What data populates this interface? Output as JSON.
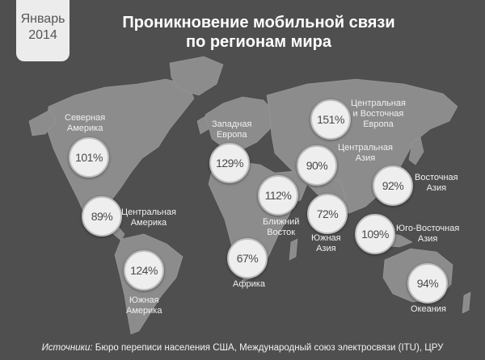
{
  "header": {
    "date_month": "Январь",
    "date_year": "2014",
    "title_line1": "Проникновение мобильной связи",
    "title_line2": "по регионам мира"
  },
  "regions": {
    "north_america": {
      "label1": "Северная",
      "label2": "Америка",
      "value": "101%"
    },
    "central_america": {
      "label1": "Центральная",
      "label2": "Америка",
      "value": "89%"
    },
    "south_america": {
      "label1": "Южная",
      "label2": "Америка",
      "value": "124%"
    },
    "western_europe": {
      "label1": "Западная",
      "label2": "Европа",
      "value": "129%"
    },
    "africa": {
      "label1": "Африка",
      "value": "67%"
    },
    "middle_east": {
      "label1": "Ближний",
      "label2": "Восток",
      "value": "112%"
    },
    "central_eastern_europe": {
      "label1": "Центральная",
      "label2": "и Восточная",
      "label3": "Европа",
      "value": "151%"
    },
    "central_asia": {
      "label1": "Центральная",
      "label2": "Азия",
      "value": "90%"
    },
    "south_asia": {
      "label1": "Южная",
      "label2": "Азия",
      "value": "72%"
    },
    "east_asia": {
      "label1": "Восточная",
      "label2": "Азия",
      "value": "92%"
    },
    "southeast_asia": {
      "label1": "Юго-Восточная",
      "label2": "Азия",
      "value": "109%"
    },
    "oceania": {
      "label1": "Океания",
      "value": "94%"
    }
  },
  "footer": {
    "sources_label": "Источники:",
    "sources_text": " Бюро переписи населения США, Международный союз электросвязи (ITU), ЦРУ"
  },
  "colors": {
    "background": "#4f4f4f",
    "land": "#8a8a8a",
    "bubble": "#eeeeee"
  }
}
